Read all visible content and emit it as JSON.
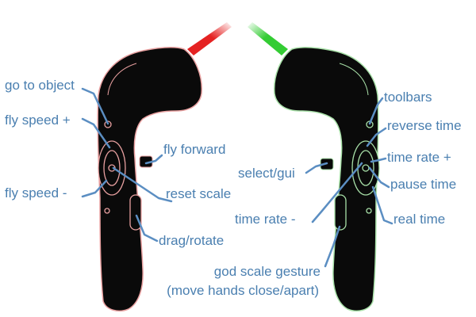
{
  "colors": {
    "label": "#4a7fb0",
    "leader": "#5b8ec2",
    "controller_body": "#0a0a0a",
    "left_outline": "#e8a0a0",
    "right_outline": "#a8e0a8",
    "left_beam": "#e52222",
    "right_beam": "#33cc33"
  },
  "left_controller": {
    "name": "left-controller",
    "labels": [
      {
        "name": "go-to-object-label",
        "text": "go to object"
      },
      {
        "name": "fly-speed-plus-label",
        "text": "fly speed +"
      },
      {
        "name": "fly-forward-label",
        "text": "fly forward"
      },
      {
        "name": "fly-speed-minus-label",
        "text": "fly speed -"
      },
      {
        "name": "reset-scale-label",
        "text": "reset scale"
      },
      {
        "name": "drag-rotate-label",
        "text": "drag/rotate"
      }
    ]
  },
  "right_controller": {
    "name": "right-controller",
    "labels": [
      {
        "name": "toolbars-label",
        "text": "toolbars"
      },
      {
        "name": "reverse-time-label",
        "text": "reverse time"
      },
      {
        "name": "time-rate-plus-label",
        "text": "time rate +"
      },
      {
        "name": "select-gui-label",
        "text": "select/gui"
      },
      {
        "name": "pause-time-label",
        "text": "pause time"
      },
      {
        "name": "time-rate-minus-label",
        "text": "time rate -"
      },
      {
        "name": "real-time-label",
        "text": "real time"
      }
    ]
  },
  "gesture": {
    "line1": "god scale gesture",
    "line2": "(move hands close/apart)"
  }
}
